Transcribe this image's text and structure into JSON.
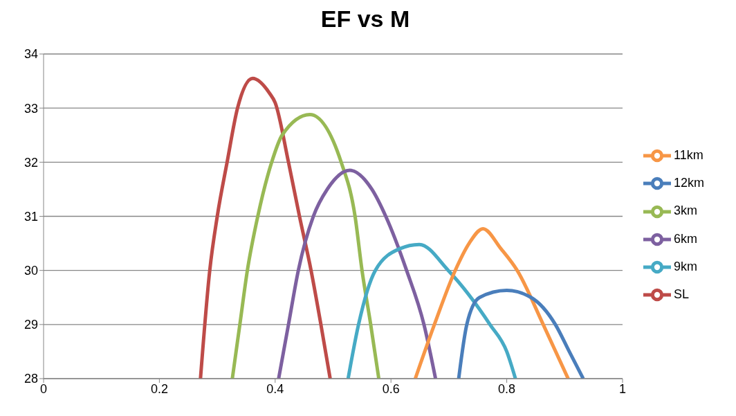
{
  "chart_data": {
    "type": "line",
    "title": "EF vs M",
    "xlim": [
      0,
      1
    ],
    "xticks": [
      0,
      0.2,
      0.4,
      0.6,
      0.8,
      1
    ],
    "ylim": [
      28,
      34
    ],
    "yticks": [
      28,
      29,
      30,
      31,
      32,
      33,
      34
    ],
    "grid": "y",
    "legend": "right",
    "marker": "none",
    "line_style": "solid",
    "series": [
      {
        "name": "SL",
        "color": "#be4b48",
        "x": [
          0.271,
          0.287,
          0.3,
          0.317,
          0.335,
          0.361,
          0.39,
          0.4,
          0.423,
          0.442,
          0.462,
          0.479,
          0.495
        ],
        "values": [
          28,
          30,
          31,
          32,
          33,
          33.55,
          33.28,
          33.1,
          32,
          31,
          30,
          29,
          28
        ]
      },
      {
        "name": "3km",
        "color": "#98b954",
        "x": [
          0.326,
          0.339,
          0.352,
          0.37,
          0.394,
          0.412,
          0.46,
          0.514,
          0.538,
          0.55,
          0.565,
          0.579
        ],
        "values": [
          28,
          29,
          30,
          31,
          32,
          32.5,
          32.88,
          32,
          31,
          30,
          29,
          28
        ]
      },
      {
        "name": "6km",
        "color": "#7d60a0",
        "x": [
          0.406,
          0.423,
          0.44,
          0.466,
          0.49,
          0.529,
          0.567,
          0.591,
          0.627,
          0.657,
          0.677
        ],
        "values": [
          28,
          29,
          30,
          31,
          31.5,
          31.85,
          31.5,
          31,
          30,
          29,
          28
        ]
      },
      {
        "name": "9km",
        "color": "#46aac5",
        "x": [
          0.526,
          0.544,
          0.573,
          0.615,
          0.649,
          0.699,
          0.771,
          0.8,
          0.815
        ],
        "values": [
          28,
          29,
          30,
          30.4,
          30.48,
          30,
          29,
          28.5,
          28
        ]
      },
      {
        "name": "11km",
        "color": "#f79646",
        "x": [
          0.642,
          0.675,
          0.711,
          0.735,
          0.759,
          0.79,
          0.818,
          0.863,
          0.906
        ],
        "values": [
          28,
          29,
          30,
          30.5,
          30.77,
          30.4,
          30,
          29,
          28
        ]
      },
      {
        "name": "12km",
        "color": "#4a7ebb",
        "x": [
          0.717,
          0.731,
          0.753,
          0.8,
          0.842,
          0.884,
          0.908,
          0.932
        ],
        "values": [
          28,
          29,
          29.5,
          29.63,
          29.5,
          29,
          28.5,
          28
        ]
      }
    ]
  }
}
